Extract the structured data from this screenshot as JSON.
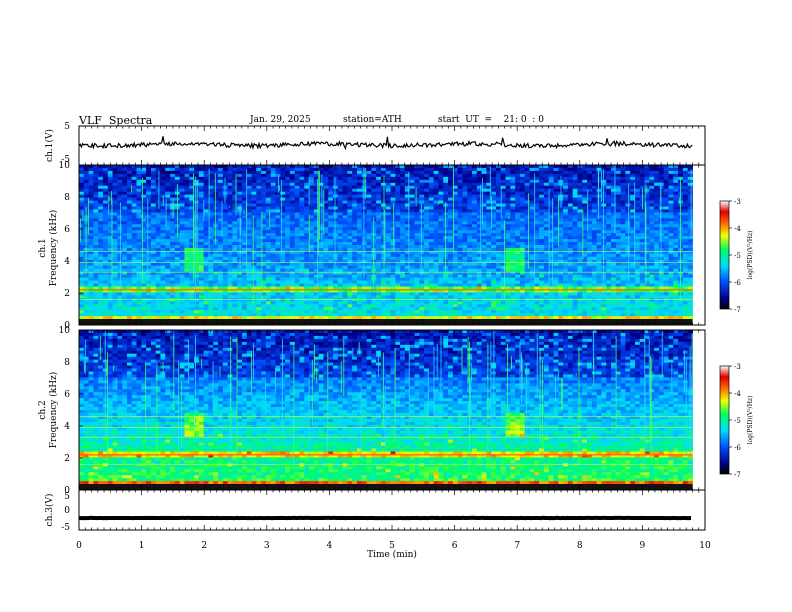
{
  "header": {
    "title": "VLF  Spectra",
    "date": "Jan. 29, 2025",
    "station": "station=ATH",
    "start_ut": "start  UT  =    21: 0  : 0"
  },
  "chart_data": [
    {
      "type": "line",
      "ylabel": "ch.1(V)",
      "ylim": [
        -5,
        5
      ],
      "yticks": [
        "5",
        "-5"
      ],
      "xlim": [
        0,
        10
      ],
      "x_end": 9.8,
      "trace_level": 0.2,
      "color": "#000000"
    },
    {
      "type": "heatmap",
      "ylabel": "ch.1\nFrequency  (kHz)",
      "ylim": [
        0,
        10
      ],
      "yticks": [
        "0",
        "2",
        "4",
        "6",
        "8",
        "10"
      ],
      "xlim": [
        0,
        10
      ],
      "x_end": 9.8,
      "colorbar": {
        "label": "log(PSD)(V²/Hz)",
        "range": [
          -7,
          -3
        ],
        "ticks": [
          "-3",
          "-4",
          "-5",
          "-6",
          "-7"
        ]
      },
      "bursts_min": [
        1.8,
        6.9
      ]
    },
    {
      "type": "heatmap",
      "ylabel": "ch.2\nFrequency  (kHz)",
      "ylim": [
        0,
        10
      ],
      "yticks": [
        "0",
        "2",
        "4",
        "6",
        "8",
        "10"
      ],
      "xlim": [
        0,
        10
      ],
      "x_end": 9.8,
      "colorbar": {
        "label": "log(PSD)(V²/Hz)",
        "range": [
          -7,
          -3
        ],
        "ticks": [
          "-3",
          "-4",
          "-5",
          "-6",
          "-7"
        ]
      },
      "bursts_min": [
        1.8,
        6.9
      ]
    },
    {
      "type": "line",
      "ylabel": "ch.3(V)",
      "ylim": [
        -5,
        5
      ],
      "yticks": [
        "5",
        "0",
        "-5"
      ],
      "xlim": [
        0,
        10
      ],
      "x_end": 9.8,
      "trace_level": -2.0,
      "color": "#000000",
      "xlabel": "Time  (min)",
      "xticks": [
        "0",
        "1",
        "2",
        "3",
        "4",
        "5",
        "6",
        "7",
        "8",
        "9",
        "10"
      ]
    }
  ]
}
